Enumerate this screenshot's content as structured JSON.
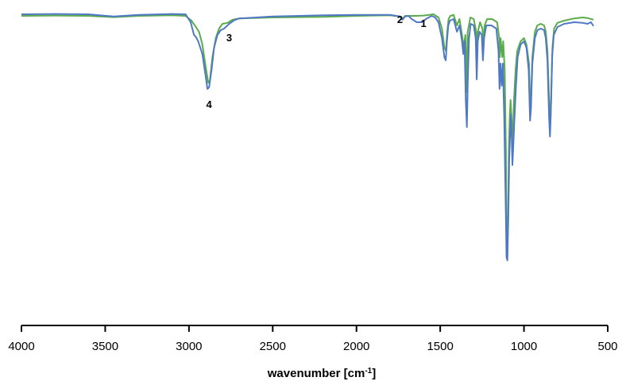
{
  "chart_data": {
    "type": "line",
    "title": "",
    "xlabel": "wavenumber [cm",
    "xlabel_sup": "-1",
    "xlabel_close": "]",
    "ylabel": "",
    "xlim": [
      4000,
      500
    ],
    "ylim": [
      0,
      100
    ],
    "x_reversed": true,
    "grid": false,
    "legend": "none",
    "y_axis_visible": false,
    "xticks": [
      4000,
      3500,
      3000,
      2500,
      2000,
      1500,
      1000,
      500
    ],
    "xtick_labels": [
      "4000",
      "3500",
      "3000",
      "2500",
      "2000",
      "1500",
      "1000",
      "500"
    ],
    "series": [
      {
        "color": "#5aab4a",
        "points": [
          [
            4000,
            97.0
          ],
          [
            3800,
            97.1
          ],
          [
            3600,
            97.0
          ],
          [
            3450,
            96.6
          ],
          [
            3300,
            97.0
          ],
          [
            3100,
            97.2
          ],
          [
            3020,
            97.0
          ],
          [
            2985,
            95.5
          ],
          [
            2960,
            93.6
          ],
          [
            2940,
            92.0
          ],
          [
            2920,
            88.0
          ],
          [
            2900,
            81.0
          ],
          [
            2885,
            76.0
          ],
          [
            2875,
            76.6
          ],
          [
            2860,
            84.0
          ],
          [
            2840,
            90.0
          ],
          [
            2820,
            93.0
          ],
          [
            2800,
            94.5
          ],
          [
            2770,
            94.8
          ],
          [
            2740,
            95.8
          ],
          [
            2700,
            96.2
          ],
          [
            2500,
            96.5
          ],
          [
            2200,
            96.7
          ],
          [
            2000,
            97.0
          ],
          [
            1800,
            97.2
          ],
          [
            1740,
            96.8
          ],
          [
            1725,
            96.0
          ],
          [
            1710,
            97.0
          ],
          [
            1650,
            97.0
          ],
          [
            1600,
            97.1
          ],
          [
            1540,
            97.5
          ],
          [
            1510,
            96.5
          ],
          [
            1490,
            93.0
          ],
          [
            1475,
            87.0
          ],
          [
            1466,
            86.0
          ],
          [
            1458,
            92.0
          ],
          [
            1450,
            96.0
          ],
          [
            1440,
            97.0
          ],
          [
            1420,
            97.3
          ],
          [
            1400,
            94.0
          ],
          [
            1385,
            96.0
          ],
          [
            1370,
            91.0
          ],
          [
            1360,
            87.0
          ],
          [
            1350,
            91.0
          ],
          [
            1343,
            73.0
          ],
          [
            1336,
            92.0
          ],
          [
            1320,
            96.5
          ],
          [
            1300,
            96.0
          ],
          [
            1285,
            92.0
          ],
          [
            1280,
            85.0
          ],
          [
            1275,
            92.0
          ],
          [
            1262,
            95.0
          ],
          [
            1248,
            93.0
          ],
          [
            1242,
            87.0
          ],
          [
            1235,
            94.0
          ],
          [
            1220,
            96.0
          ],
          [
            1190,
            96.0
          ],
          [
            1160,
            95.0
          ],
          [
            1148,
            90.0
          ],
          [
            1144,
            84.0
          ],
          [
            1140,
            90.0
          ],
          [
            1130,
            84.0
          ],
          [
            1124,
            89.0
          ],
          [
            1115,
            80.0
          ],
          [
            1108,
            55.0
          ],
          [
            1104,
            25.0
          ],
          [
            1100,
            22.0
          ],
          [
            1095,
            35.0
          ],
          [
            1090,
            55.0
          ],
          [
            1085,
            65.0
          ],
          [
            1080,
            70.5
          ],
          [
            1075,
            65.0
          ],
          [
            1070,
            57.0
          ],
          [
            1065,
            62.0
          ],
          [
            1060,
            70.0
          ],
          [
            1050,
            80.0
          ],
          [
            1040,
            86.0
          ],
          [
            1020,
            89.0
          ],
          [
            1000,
            90.0
          ],
          [
            985,
            88.0
          ],
          [
            970,
            82.0
          ],
          [
            962,
            66.0
          ],
          [
            957,
            72.0
          ],
          [
            950,
            84.0
          ],
          [
            935,
            92.0
          ],
          [
            920,
            94.0
          ],
          [
            900,
            94.5
          ],
          [
            880,
            94.0
          ],
          [
            870,
            92.0
          ],
          [
            860,
            86.0
          ],
          [
            848,
            68.0
          ],
          [
            843,
            62.5
          ],
          [
            838,
            70.0
          ],
          [
            830,
            87.0
          ],
          [
            820,
            93.0
          ],
          [
            800,
            94.8
          ],
          [
            760,
            95.5
          ],
          [
            700,
            96.2
          ],
          [
            650,
            96.5
          ],
          [
            620,
            96.3
          ],
          [
            585,
            95.8
          ]
        ]
      },
      {
        "color": "#4f79c6",
        "points": [
          [
            4000,
            97.5
          ],
          [
            3800,
            97.6
          ],
          [
            3600,
            97.5
          ],
          [
            3450,
            96.8
          ],
          [
            3300,
            97.3
          ],
          [
            3100,
            97.6
          ],
          [
            3020,
            97.5
          ],
          [
            2990,
            95.0
          ],
          [
            2970,
            91.0
          ],
          [
            2960,
            90.5
          ],
          [
            2945,
            89.0
          ],
          [
            2920,
            85.0
          ],
          [
            2900,
            78.0
          ],
          [
            2890,
            74.0
          ],
          [
            2880,
            74.5
          ],
          [
            2865,
            80.0
          ],
          [
            2850,
            87.0
          ],
          [
            2830,
            91.0
          ],
          [
            2810,
            92.5
          ],
          [
            2790,
            93.0
          ],
          [
            2760,
            94.5
          ],
          [
            2730,
            95.6
          ],
          [
            2700,
            96.2
          ],
          [
            2500,
            96.8
          ],
          [
            2200,
            97.2
          ],
          [
            2000,
            97.3
          ],
          [
            1800,
            97.3
          ],
          [
            1740,
            96.8
          ],
          [
            1725,
            95.8
          ],
          [
            1710,
            96.8
          ],
          [
            1690,
            97.0
          ],
          [
            1670,
            96.0
          ],
          [
            1640,
            95.0
          ],
          [
            1610,
            95.0
          ],
          [
            1580,
            96.2
          ],
          [
            1550,
            97.0
          ],
          [
            1530,
            96.5
          ],
          [
            1510,
            95.0
          ],
          [
            1490,
            90.0
          ],
          [
            1475,
            84.0
          ],
          [
            1467,
            83.0
          ],
          [
            1460,
            89.0
          ],
          [
            1452,
            94.0
          ],
          [
            1442,
            95.5
          ],
          [
            1420,
            96.0
          ],
          [
            1400,
            92.0
          ],
          [
            1385,
            94.0
          ],
          [
            1370,
            89.0
          ],
          [
            1362,
            85.0
          ],
          [
            1355,
            89.0
          ],
          [
            1347,
            70.0
          ],
          [
            1341,
            62.0
          ],
          [
            1336,
            75.0
          ],
          [
            1328,
            90.0
          ],
          [
            1318,
            94.5
          ],
          [
            1300,
            94.0
          ],
          [
            1288,
            90.0
          ],
          [
            1282,
            77.0
          ],
          [
            1276,
            89.0
          ],
          [
            1265,
            92.0
          ],
          [
            1252,
            91.0
          ],
          [
            1245,
            83.0
          ],
          [
            1238,
            90.0
          ],
          [
            1225,
            94.0
          ],
          [
            1195,
            94.0
          ],
          [
            1165,
            93.0
          ],
          [
            1152,
            86.0
          ],
          [
            1146,
            74.0
          ],
          [
            1140,
            82.0
          ],
          [
            1133,
            75.0
          ],
          [
            1126,
            82.0
          ],
          [
            1118,
            65.0
          ],
          [
            1110,
            40.0
          ],
          [
            1104,
            21.0
          ],
          [
            1099,
            20.0
          ],
          [
            1094,
            33.0
          ],
          [
            1088,
            52.0
          ],
          [
            1082,
            61.0
          ],
          [
            1077,
            66.0
          ],
          [
            1073,
            58.0
          ],
          [
            1069,
            50.0
          ],
          [
            1064,
            56.0
          ],
          [
            1058,
            63.0
          ],
          [
            1048,
            75.0
          ],
          [
            1038,
            84.0
          ],
          [
            1020,
            88.0
          ],
          [
            1000,
            89.0
          ],
          [
            985,
            87.0
          ],
          [
            972,
            80.0
          ],
          [
            964,
            64.0
          ],
          [
            958,
            68.0
          ],
          [
            950,
            82.0
          ],
          [
            935,
            90.0
          ],
          [
            920,
            92.5
          ],
          [
            900,
            93.0
          ],
          [
            880,
            92.5
          ],
          [
            870,
            90.0
          ],
          [
            860,
            83.0
          ],
          [
            850,
            65.0
          ],
          [
            845,
            59.0
          ],
          [
            840,
            66.0
          ],
          [
            832,
            84.0
          ],
          [
            822,
            91.0
          ],
          [
            800,
            93.5
          ],
          [
            760,
            94.5
          ],
          [
            700,
            95.0
          ],
          [
            650,
            94.8
          ],
          [
            620,
            94.5
          ],
          [
            600,
            95.0
          ],
          [
            585,
            93.8
          ]
        ]
      }
    ],
    "annotations": [
      {
        "text": "1",
        "x": 1600,
        "y": 93.5
      },
      {
        "text": "2",
        "x": 1740,
        "y": 94.8
      },
      {
        "text": "3",
        "x": 2760,
        "y": 89.0
      },
      {
        "text": "4",
        "x": 2880,
        "y": 68.0
      }
    ]
  }
}
